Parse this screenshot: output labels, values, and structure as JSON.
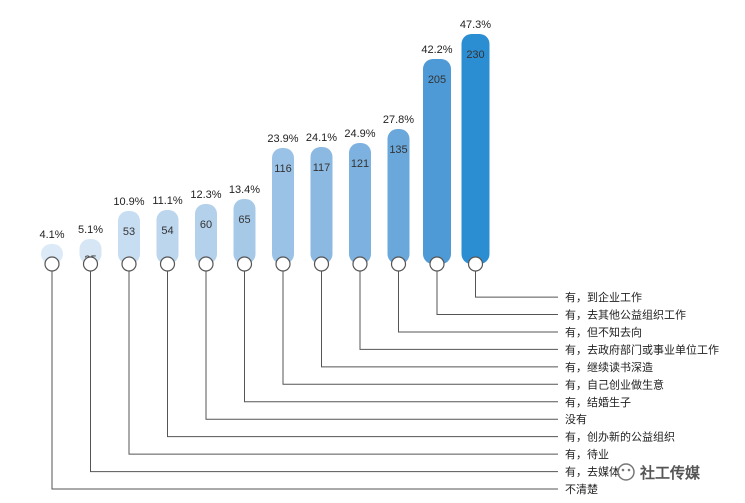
{
  "chart_data": {
    "type": "bar",
    "title": "",
    "xlabel": "",
    "ylabel": "",
    "ylim": [
      0,
      230
    ],
    "grid": false,
    "legend": "none",
    "values": [
      20,
      25,
      53,
      54,
      60,
      65,
      116,
      117,
      121,
      135,
      205,
      230
    ],
    "percent_labels": [
      "4.1%",
      "5.1%",
      "10.9%",
      "11.1%",
      "12.3%",
      "13.4%",
      "23.9%",
      "24.1%",
      "24.9%",
      "27.8%",
      "42.2%",
      "47.3%"
    ],
    "categories": [
      "不清楚",
      "有，去媒体",
      "有，待业",
      "有，创办新的公益组织",
      "没有",
      "有，结婚生子",
      "有，自己创业做生意",
      "有，继续读书深造",
      "有，去政府部门或事业单位工作",
      "有，但不知去向",
      "有，去其他公益组织工作",
      "有，到企业工作"
    ],
    "colors": [
      "#dce9f6",
      "#d6e6f5",
      "#c7ddf2",
      "#bcd6ee",
      "#b4d1ec",
      "#a7c9e8",
      "#9ac2e6",
      "#8cb9e2",
      "#7db1df",
      "#6aa7da",
      "#4e9ad6",
      "#2c8ed2"
    ]
  },
  "watermark": {
    "text": "社工传媒",
    "icon": "wechat-icon"
  }
}
